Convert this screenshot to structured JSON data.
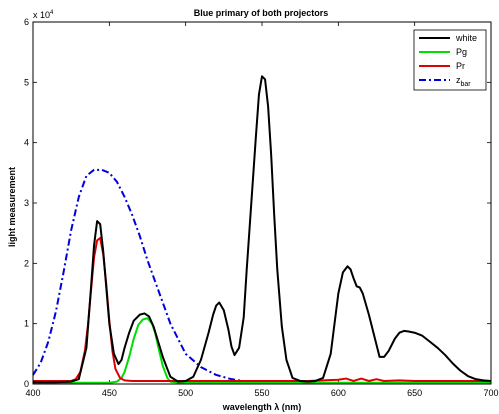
{
  "chart_data": {
    "type": "line",
    "title": "Blue primary of both projectors",
    "xlabel": "wavelength λ (nm)",
    "ylabel": "light measurement",
    "y_exponent_label": "x 10",
    "y_exponent_power": "4",
    "xlim": [
      400,
      700
    ],
    "ylim": [
      0,
      6
    ],
    "xticks": [
      400,
      450,
      500,
      550,
      600,
      650,
      700
    ],
    "yticks": [
      0,
      1,
      2,
      3,
      4,
      5,
      6
    ],
    "y_units_multiplier": 10000,
    "grid": false,
    "legend_position": "top-right",
    "series": [
      {
        "name": "white",
        "label_main": "white",
        "label_sub": "",
        "color": "#000000",
        "dash": "solid",
        "x": [
          400,
          415,
          425,
          430,
          435,
          438,
          440,
          442,
          444,
          446,
          448,
          450,
          453,
          456,
          458,
          460,
          463,
          466,
          470,
          473,
          476,
          479,
          482,
          485,
          488,
          490,
          495,
          500,
          505,
          510,
          515,
          518,
          520,
          522,
          525,
          528,
          530,
          532,
          535,
          538,
          540,
          543,
          546,
          548,
          550,
          552,
          554,
          556,
          558,
          560,
          563,
          566,
          570,
          575,
          580,
          585,
          590,
          595,
          597,
          600,
          603,
          606,
          608,
          610,
          612,
          614,
          616,
          620,
          624,
          627,
          630,
          633,
          637,
          640,
          643,
          646,
          650,
          655,
          660,
          665,
          670,
          675,
          680,
          685,
          690,
          695,
          700
        ],
        "y": [
          0.03,
          0.03,
          0.04,
          0.08,
          0.6,
          1.6,
          2.3,
          2.7,
          2.65,
          2.2,
          1.6,
          1.0,
          0.5,
          0.33,
          0.4,
          0.6,
          0.85,
          1.05,
          1.15,
          1.17,
          1.12,
          0.95,
          0.7,
          0.45,
          0.25,
          0.12,
          0.04,
          0.05,
          0.12,
          0.4,
          0.85,
          1.15,
          1.3,
          1.35,
          1.22,
          0.9,
          0.62,
          0.48,
          0.6,
          1.1,
          1.9,
          3.0,
          4.1,
          4.8,
          5.1,
          5.05,
          4.6,
          3.8,
          2.8,
          1.9,
          0.95,
          0.4,
          0.1,
          0.05,
          0.04,
          0.05,
          0.1,
          0.5,
          0.9,
          1.5,
          1.85,
          1.95,
          1.9,
          1.75,
          1.62,
          1.6,
          1.5,
          1.15,
          0.75,
          0.45,
          0.45,
          0.55,
          0.75,
          0.85,
          0.88,
          0.87,
          0.85,
          0.8,
          0.7,
          0.6,
          0.48,
          0.34,
          0.22,
          0.13,
          0.08,
          0.06,
          0.05
        ]
      },
      {
        "name": "Pg",
        "label_main": "Pg",
        "label_sub": "",
        "color": "#00dd00",
        "dash": "solid",
        "x": [
          400,
          430,
          440,
          450,
          455,
          458,
          460,
          463,
          466,
          469,
          472,
          475,
          478,
          480,
          482,
          485,
          488,
          490,
          493,
          496,
          500,
          520,
          560,
          600,
          640,
          680,
          700
        ],
        "y": [
          0.02,
          0.02,
          0.02,
          0.02,
          0.04,
          0.1,
          0.2,
          0.45,
          0.75,
          0.98,
          1.07,
          1.09,
          1.0,
          0.85,
          0.62,
          0.3,
          0.1,
          0.04,
          0.03,
          0.02,
          0.02,
          0.02,
          0.02,
          0.02,
          0.02,
          0.02,
          0.02
        ]
      },
      {
        "name": "Pr",
        "label_main": "Pr",
        "label_sub": "",
        "color": "#dd0000",
        "dash": "solid",
        "x": [
          400,
          420,
          425,
          428,
          431,
          434,
          436,
          438,
          440,
          442,
          444,
          446,
          448,
          450,
          452,
          454,
          457,
          460,
          465,
          470,
          480,
          490,
          500,
          520,
          540,
          560,
          580,
          600,
          605,
          610,
          615,
          620,
          625,
          630,
          640,
          650,
          660,
          680,
          700
        ],
        "y": [
          0.05,
          0.05,
          0.05,
          0.08,
          0.2,
          0.55,
          0.98,
          1.55,
          2.1,
          2.38,
          2.42,
          2.15,
          1.65,
          1.05,
          0.55,
          0.25,
          0.1,
          0.06,
          0.05,
          0.05,
          0.05,
          0.05,
          0.05,
          0.05,
          0.05,
          0.05,
          0.05,
          0.07,
          0.09,
          0.05,
          0.09,
          0.05,
          0.08,
          0.05,
          0.06,
          0.05,
          0.05,
          0.05,
          0.05
        ]
      },
      {
        "name": "z_bar",
        "label_main": "z",
        "label_sub": "bar",
        "color": "#0000dd",
        "dash": "dashdot",
        "x": [
          400,
          405,
          410,
          415,
          420,
          425,
          430,
          435,
          440,
          445,
          450,
          455,
          460,
          465,
          470,
          475,
          480,
          485,
          490,
          495,
          500,
          510,
          520,
          530,
          540,
          550,
          560,
          700
        ],
        "y": [
          0.15,
          0.35,
          0.7,
          1.2,
          1.85,
          2.55,
          3.1,
          3.45,
          3.55,
          3.55,
          3.5,
          3.35,
          3.1,
          2.8,
          2.45,
          2.05,
          1.7,
          1.35,
          1.0,
          0.75,
          0.5,
          0.28,
          0.15,
          0.08,
          0.04,
          0.02,
          0.01,
          0.01
        ]
      }
    ]
  }
}
